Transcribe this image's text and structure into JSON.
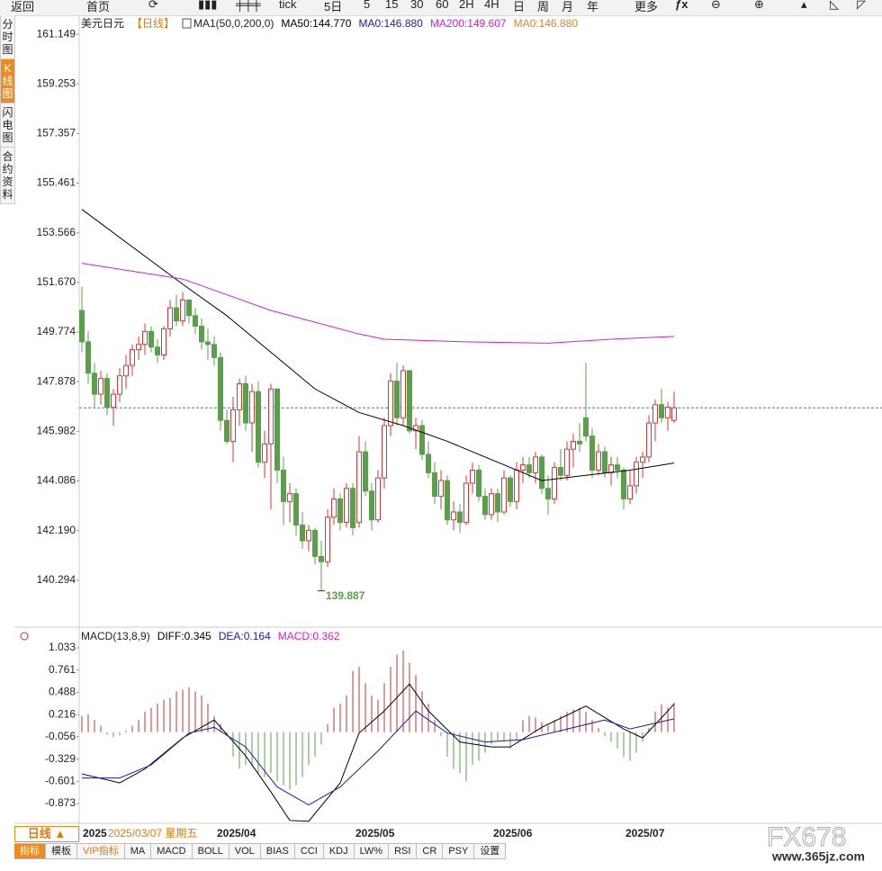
{
  "toolbar": [
    "返回",
    "首页",
    "tick",
    "5日",
    "5",
    "15",
    "30",
    "60",
    "2H",
    "4H",
    "日",
    "周",
    "月",
    "年",
    "更多"
  ],
  "sidebar": [
    "分时图",
    "K线图",
    "闪电图",
    "合约资料"
  ],
  "footer": {
    "period_button": "日线 ▲",
    "tabs": [
      "指标",
      "模板",
      "VIP指标",
      "MA",
      "MACD",
      "BOLL",
      "VOL",
      "BIAS",
      "CCI",
      "KDJ",
      "LW%",
      "RSI",
      "CR",
      "PSY",
      "设置"
    ]
  },
  "watermark": {
    "logo": "FX678",
    "site": "www.365jz.com"
  },
  "chart_data": [
    {
      "type": "candlestick",
      "title": "美元日元",
      "period": "【日线】",
      "indicator": "MA1(50,0,200,0)",
      "up_color": "#d23a3a",
      "down_color": "#5b9f4c",
      "last_price": 146.88,
      "price_line_color": "#3a7bd5",
      "x_labels": [
        "2025",
        "2025/04",
        "2025/05",
        "2025/06",
        "2025/07"
      ],
      "cursor_date": "2025/03/07 星期五",
      "low_label": "139.887",
      "ylim": [
        138.5,
        161.84
      ],
      "yticks": [
        161.149,
        159.253,
        157.357,
        155.461,
        153.566,
        {
          "value": 151.67,
          "label": "151.670"
        },
        149.774,
        147.878,
        145.982,
        144.086,
        {
          "value": 142.19,
          "label": "142.190"
        },
        140.294
      ],
      "grid": false,
      "candles": [
        [
          150.6,
          151.5,
          149.0,
          149.4
        ],
        [
          149.4,
          149.8,
          147.8,
          148.2
        ],
        [
          148.2,
          148.6,
          146.9,
          147.4
        ],
        [
          147.4,
          148.3,
          147.0,
          148.0
        ],
        [
          148.0,
          148.2,
          146.6,
          146.9
        ],
        [
          146.9,
          147.6,
          146.2,
          147.4
        ],
        [
          147.4,
          148.4,
          147.1,
          148.1
        ],
        [
          148.1,
          148.9,
          147.6,
          148.5
        ],
        [
          148.5,
          149.3,
          148.1,
          149.1
        ],
        [
          149.1,
          149.6,
          148.7,
          149.3
        ],
        [
          149.3,
          150.1,
          148.9,
          149.8
        ],
        [
          149.8,
          150.0,
          149.0,
          149.2
        ],
        [
          149.2,
          149.5,
          148.6,
          148.9
        ],
        [
          148.9,
          150.0,
          148.7,
          149.9
        ],
        [
          149.9,
          151.0,
          149.6,
          150.7
        ],
        [
          150.7,
          151.2,
          150.0,
          150.2
        ],
        [
          150.2,
          151.3,
          150.0,
          151.0
        ],
        [
          151.0,
          151.0,
          150.1,
          150.4
        ],
        [
          150.4,
          150.7,
          149.7,
          150.0
        ],
        [
          150.0,
          150.3,
          149.1,
          149.4
        ],
        [
          149.4,
          149.9,
          148.7,
          149.3
        ],
        [
          149.3,
          149.6,
          148.5,
          148.8
        ],
        [
          148.8,
          149.0,
          146.0,
          146.4
        ],
        [
          146.4,
          146.8,
          145.5,
          145.6
        ],
        [
          145.6,
          147.3,
          144.8,
          146.8
        ],
        [
          146.8,
          148.0,
          146.2,
          147.8
        ],
        [
          147.8,
          148.1,
          146.0,
          146.3
        ],
        [
          146.3,
          147.8,
          145.2,
          147.5
        ],
        [
          147.5,
          147.9,
          144.6,
          144.8
        ],
        [
          144.8,
          146.0,
          144.2,
          145.5
        ],
        [
          145.5,
          147.8,
          143.0,
          147.6
        ],
        [
          147.6,
          147.6,
          144.0,
          144.5
        ],
        [
          144.5,
          145.0,
          142.4,
          143.3
        ],
        [
          143.3,
          144.0,
          142.5,
          143.6
        ],
        [
          143.6,
          143.8,
          142.0,
          142.4
        ],
        [
          142.4,
          142.9,
          141.5,
          141.8
        ],
        [
          141.8,
          142.4,
          141.4,
          142.2
        ],
        [
          142.2,
          142.3,
          140.9,
          141.2
        ],
        [
          141.2,
          141.8,
          139.887,
          141.0
        ],
        [
          141.0,
          143.0,
          140.8,
          142.7
        ],
        [
          142.7,
          143.8,
          142.4,
          143.4
        ],
        [
          143.4,
          143.6,
          142.2,
          142.5
        ],
        [
          142.5,
          144.0,
          142.3,
          143.8
        ],
        [
          143.8,
          144.0,
          142.0,
          142.3
        ],
        [
          142.5,
          145.8,
          142.3,
          145.2
        ],
        [
          145.2,
          145.6,
          143.5,
          143.7
        ],
        [
          143.7,
          144.0,
          142.2,
          142.6
        ],
        [
          142.6,
          144.5,
          142.5,
          144.2
        ],
        [
          144.2,
          146.5,
          143.8,
          146.2
        ],
        [
          146.2,
          148.2,
          145.8,
          147.9
        ],
        [
          147.9,
          148.6,
          146.2,
          146.5
        ],
        [
          146.5,
          148.5,
          146.2,
          148.3
        ],
        [
          148.3,
          148.3,
          145.9,
          146.0
        ],
        [
          146.0,
          146.5,
          145.3,
          146.2
        ],
        [
          146.2,
          146.4,
          144.9,
          145.1
        ],
        [
          145.1,
          145.6,
          144.2,
          144.4
        ],
        [
          144.4,
          144.8,
          143.2,
          143.5
        ],
        [
          143.5,
          144.5,
          143.0,
          144.1
        ],
        [
          144.1,
          144.3,
          142.4,
          142.6
        ],
        [
          142.6,
          143.3,
          142.2,
          142.9
        ],
        [
          142.9,
          143.2,
          142.1,
          142.5
        ],
        [
          142.5,
          144.3,
          142.4,
          144.0
        ],
        [
          144.0,
          144.8,
          143.6,
          144.5
        ],
        [
          144.5,
          144.7,
          143.3,
          143.5
        ],
        [
          143.5,
          143.8,
          142.6,
          142.8
        ],
        [
          142.8,
          143.8,
          142.6,
          143.6
        ],
        [
          143.6,
          143.8,
          142.5,
          142.9
        ],
        [
          142.9,
          144.5,
          142.8,
          144.2
        ],
        [
          144.2,
          144.3,
          143.1,
          143.3
        ],
        [
          143.3,
          144.8,
          143.0,
          144.5
        ],
        [
          144.5,
          145.0,
          144.0,
          144.7
        ],
        [
          144.7,
          145.0,
          144.2,
          144.4
        ],
        [
          144.4,
          145.2,
          144.0,
          145.0
        ],
        [
          145.0,
          145.1,
          143.6,
          143.8
        ],
        [
          143.8,
          144.3,
          142.8,
          143.4
        ],
        [
          143.4,
          144.8,
          143.2,
          144.6
        ],
        [
          144.6,
          145.3,
          144.1,
          144.3
        ],
        [
          144.3,
          145.6,
          144.1,
          145.3
        ],
        [
          145.3,
          145.9,
          144.6,
          145.6
        ],
        [
          145.6,
          146.3,
          145.2,
          145.5
        ],
        [
          146.5,
          148.6,
          145.6,
          145.8
        ],
        [
          145.8,
          146.1,
          144.2,
          144.5
        ],
        [
          144.5,
          145.5,
          144.3,
          145.2
        ],
        [
          145.2,
          145.4,
          144.2,
          144.4
        ],
        [
          144.4,
          145.0,
          143.9,
          144.7
        ],
        [
          144.7,
          145.0,
          144.2,
          144.5
        ],
        [
          144.5,
          144.6,
          143.0,
          143.4
        ],
        [
          143.4,
          144.5,
          143.2,
          143.9
        ],
        [
          143.9,
          145.0,
          143.6,
          144.8
        ],
        [
          144.8,
          145.2,
          144.2,
          145.0
        ],
        [
          145.0,
          146.6,
          144.8,
          146.3
        ],
        [
          146.3,
          147.2,
          145.6,
          147.0
        ],
        [
          147.0,
          147.6,
          146.3,
          146.5
        ],
        [
          146.5,
          147.1,
          146.0,
          146.9
        ],
        [
          146.4,
          147.5,
          146.3,
          146.88
        ]
      ],
      "series": [
        {
          "name": "MA50:144.770",
          "color": "#000000",
          "x": [
            0,
            16,
            23,
            30,
            37,
            44,
            51,
            58,
            66,
            73,
            80,
            87,
            94
          ],
          "values": [
            154.46,
            151.6,
            150.4,
            149.0,
            147.6,
            146.7,
            146.2,
            145.6,
            144.8,
            144.1,
            144.3,
            144.5,
            144.77
          ]
        },
        {
          "name": "MA0:146.880",
          "color": "#1c1ca8"
        },
        {
          "name": "MA200:149.607",
          "color": "#d21fd2",
          "x": [
            0,
            16,
            30,
            44,
            48,
            61,
            74,
            84,
            94
          ],
          "values": [
            152.4,
            151.8,
            150.6,
            149.7,
            149.5,
            149.4,
            149.35,
            149.5,
            149.607
          ]
        },
        {
          "name": "MA0:146.880",
          "color": "#e0842a"
        }
      ]
    },
    {
      "type": "macd",
      "title": "MACD(13,8,9)",
      "ylim": [
        -1.115,
        1.121
      ],
      "yticks": [
        1.033,
        0.761,
        0.488,
        0.216,
        -0.056,
        -0.329,
        -0.601,
        -0.873
      ],
      "histogram": {
        "name": "MACD:0.362",
        "legend_color": "#d21fd2",
        "up_color": "#b83a3a",
        "down_color": "#5b9f4c",
        "values": [
          0.2,
          0.22,
          0.15,
          0.08,
          -0.03,
          -0.06,
          -0.04,
          0.02,
          0.08,
          0.15,
          0.25,
          0.3,
          0.35,
          0.4,
          0.42,
          0.5,
          0.52,
          0.55,
          0.5,
          0.45,
          0.35,
          0.2,
          0.1,
          -0.05,
          -0.3,
          -0.45,
          -0.4,
          -0.42,
          -0.5,
          -0.55,
          -0.5,
          -0.6,
          -0.65,
          -0.7,
          -0.65,
          -0.55,
          -0.4,
          -0.3,
          -0.15,
          0.1,
          0.3,
          0.35,
          0.45,
          0.75,
          0.8,
          0.6,
          0.45,
          0.4,
          0.6,
          0.8,
          0.95,
          1.0,
          0.85,
          0.7,
          0.5,
          0.35,
          0.15,
          -0.05,
          -0.3,
          -0.45,
          -0.5,
          -0.6,
          -0.4,
          -0.35,
          -0.25,
          -0.15,
          -0.1,
          -0.12,
          -0.2,
          -0.1,
          0.15,
          0.2,
          0.18,
          0.12,
          0.08,
          0.15,
          0.2,
          0.25,
          0.28,
          0.3,
          0.25,
          0.15,
          0.05,
          -0.05,
          -0.12,
          -0.2,
          -0.3,
          -0.35,
          -0.25,
          -0.12,
          0.05,
          0.25,
          0.34,
          0.3,
          0.362
        ]
      },
      "series": [
        {
          "name": "DIFF:0.345",
          "color": "#000000",
          "x": [
            0,
            6,
            10,
            16,
            21,
            26,
            30,
            33,
            36,
            41,
            44,
            48,
            52,
            55,
            60,
            65,
            68,
            73,
            80,
            86,
            89,
            93,
            94
          ],
          "values": [
            -0.51,
            -0.62,
            -0.45,
            -0.07,
            0.15,
            -0.29,
            -0.73,
            -1.08,
            -1.09,
            -0.62,
            -0.01,
            0.26,
            0.59,
            0.26,
            -0.12,
            -0.18,
            -0.18,
            0.06,
            0.32,
            0.04,
            -0.07,
            0.26,
            0.345
          ]
        },
        {
          "name": "DEA:0.164",
          "color": "#1c1ca8",
          "x": [
            0,
            6,
            11,
            17,
            21,
            26,
            31,
            36,
            41,
            47,
            53,
            58,
            64,
            70,
            76,
            83,
            87,
            94
          ],
          "values": [
            -0.56,
            -0.56,
            -0.4,
            -0.01,
            0.06,
            -0.18,
            -0.67,
            -0.89,
            -0.67,
            -0.23,
            0.26,
            -0.01,
            -0.12,
            -0.09,
            0.02,
            0.15,
            0.04,
            0.164
          ]
        }
      ]
    }
  ]
}
